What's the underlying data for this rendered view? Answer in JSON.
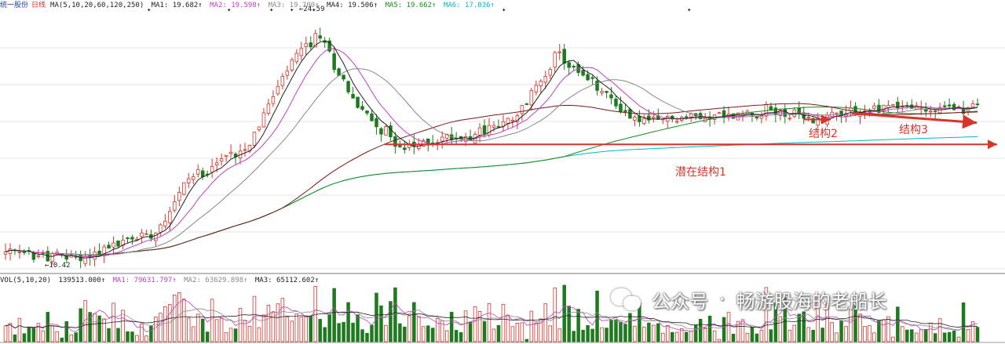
{
  "price_header": {
    "stock_name": "统一股份",
    "period": "日线",
    "ma_params": "MA(5,10,20,60,120,250)",
    "ma_items": [
      {
        "label": "MA1: 19.682↑",
        "color": "#222222"
      },
      {
        "label": "MA2: 19.598↑",
        "color": "#c03fc0"
      },
      {
        "label": "MA3: 19.700↑",
        "color": "#888888"
      },
      {
        "label": "MA4: 19.506↑",
        "color": "#222222"
      },
      {
        "label": "MA5: 19.662↑",
        "color": "#1a8a1a"
      },
      {
        "label": "MA6: 17.036↑",
        "color": "#00b8c8"
      }
    ]
  },
  "volume_header": {
    "params": "VOL(5,10,20)",
    "value": "139513.000↑",
    "ma_items": [
      {
        "label": "MA1: 79631.797↑",
        "color": "#c03fc0"
      },
      {
        "label": "MA2: 63629.898↑",
        "color": "#888888"
      },
      {
        "label": "MA3: 65112.602↑",
        "color": "#222222"
      }
    ]
  },
  "price_labels": {
    "high": "24.59",
    "low": "10.42"
  },
  "annotations": {
    "structure1": "潜在结构1",
    "structure2": "结构2",
    "structure3": "结构3",
    "arrow_color": "#d8342a"
  },
  "watermark": {
    "account_type": "公众号",
    "separator": "·",
    "account_name": "畅游股海的老船长"
  },
  "colors": {
    "up": "#d8342a",
    "down": "#1e7a1e",
    "ma5": "#222222",
    "ma10": "#c03fc0",
    "ma20": "#888888",
    "ma60": "#7a1a1a",
    "ma120": "#1a8a1a",
    "ma250": "#00b8c8"
  },
  "chart_data": {
    "type": "candlestick",
    "y_range": [
      9.8,
      25.6
    ],
    "price_high": 24.59,
    "price_low": 10.42,
    "segments": [
      {
        "days": 18,
        "close": 10.6
      },
      {
        "days": 14,
        "close": 12.2
      },
      {
        "days": 8,
        "close": 15.5
      },
      {
        "days": 12,
        "close": 17.4
      },
      {
        "days": 10,
        "close": 22.5
      },
      {
        "days": 6,
        "close": 24.2
      },
      {
        "days": 8,
        "close": 19.8
      },
      {
        "days": 10,
        "close": 17.2
      },
      {
        "days": 10,
        "close": 18.0
      },
      {
        "days": 14,
        "close": 19.0
      },
      {
        "days": 8,
        "close": 22.8
      },
      {
        "days": 6,
        "close": 21.5
      },
      {
        "days": 10,
        "close": 19.2
      },
      {
        "days": 6,
        "close": 18.8
      },
      {
        "days": 14,
        "close": 19.3
      },
      {
        "days": 10,
        "close": 19.6
      },
      {
        "days": 10,
        "close": 18.9
      },
      {
        "days": 8,
        "close": 19.7
      },
      {
        "days": 8,
        "close": 19.9
      },
      {
        "days": 10,
        "close": 19.5
      },
      {
        "days": 8,
        "close": 19.8
      }
    ],
    "structure1_price": 17.5,
    "structure2_price": 19.2,
    "structure3_price": 19.1
  }
}
